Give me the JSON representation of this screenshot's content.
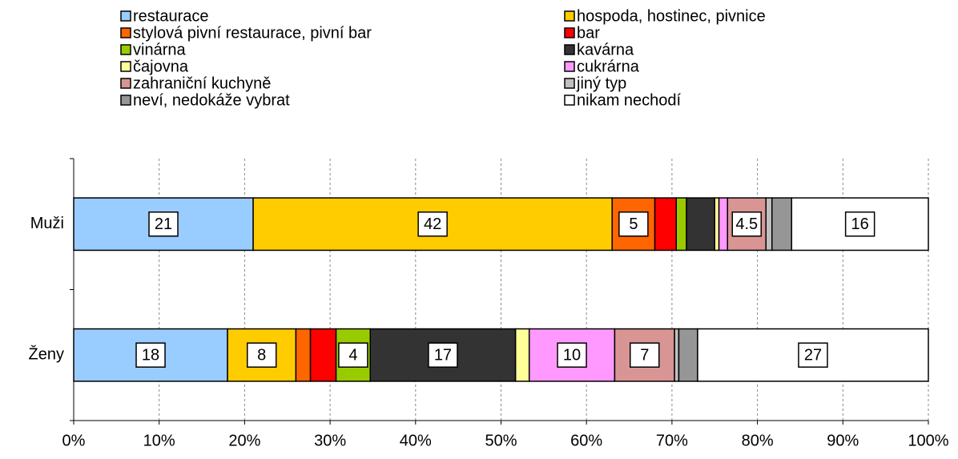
{
  "chart_data": {
    "type": "stacked_bar_h",
    "categories": [
      "Muži",
      "Ženy"
    ],
    "series": [
      {
        "name": "restaurace",
        "color": "#99ccff",
        "values": [
          21,
          18
        ]
      },
      {
        "name": "hospoda, hostinec, pivnice",
        "color": "#ffcc00",
        "values": [
          42,
          8
        ]
      },
      {
        "name": "stylová pivní restaurace, pivní bar",
        "color": "#ff6600",
        "values": [
          5,
          1.7
        ]
      },
      {
        "name": "bar",
        "color": "#ff0000",
        "values": [
          2.5,
          3
        ]
      },
      {
        "name": "vinárna",
        "color": "#99cc00",
        "values": [
          1.2,
          4
        ]
      },
      {
        "name": "kavárna",
        "color": "#333333",
        "values": [
          3.3,
          17
        ]
      },
      {
        "name": "čajovna",
        "color": "#ffff99",
        "values": [
          0.5,
          1.6
        ]
      },
      {
        "name": "cukrárna",
        "color": "#ff99ff",
        "values": [
          1,
          10
        ]
      },
      {
        "name": "zahraniční kuchyně",
        "color": "#d99594",
        "values": [
          4.5,
          7
        ]
      },
      {
        "name": "jiný typ",
        "color": "#c0c0c0",
        "values": [
          0.7,
          0.5
        ]
      },
      {
        "name": "neví, nedokáže vybrat",
        "color": "#969696",
        "values": [
          2.3,
          2.2
        ]
      },
      {
        "name": "nikam nechodí",
        "color": "#ffffff",
        "values": [
          16,
          27
        ]
      }
    ],
    "xlim": [
      0,
      100
    ],
    "xticks": [
      {
        "value": 0,
        "label": "0%"
      },
      {
        "value": 10,
        "label": "10%"
      },
      {
        "value": 20,
        "label": "20%"
      },
      {
        "value": 30,
        "label": "30%"
      },
      {
        "value": 40,
        "label": "40%"
      },
      {
        "value": 50,
        "label": "50%"
      },
      {
        "value": 60,
        "label": "60%"
      },
      {
        "value": 70,
        "label": "70%"
      },
      {
        "value": 80,
        "label": "80%"
      },
      {
        "value": 90,
        "label": "90%"
      },
      {
        "value": 100,
        "label": "100%"
      }
    ],
    "grid": true,
    "legend": "top"
  }
}
